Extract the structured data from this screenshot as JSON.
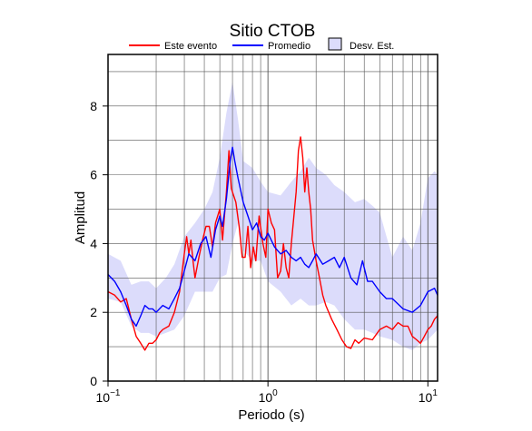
{
  "chart_data": {
    "type": "line",
    "title": "Sitio CTOB",
    "xlabel": "Periodo (s)",
    "ylabel": "Amplitud",
    "x_scale": "log",
    "xlim": [
      0.1,
      11.5
    ],
    "ylim": [
      0,
      9.5
    ],
    "grid": true,
    "legend_position": "top-center",
    "x_ticks": [
      {
        "value": 0.1,
        "base": "10",
        "exp": "−1"
      },
      {
        "value": 1,
        "base": "10",
        "exp": "0"
      },
      {
        "value": 10,
        "base": "10",
        "exp": "1"
      }
    ],
    "y_ticks": [
      0,
      2,
      4,
      6,
      8
    ],
    "legend": [
      {
        "label": "Este evento",
        "kind": "line",
        "color": "#ff0000"
      },
      {
        "label": "Promedio",
        "kind": "line",
        "color": "#0000ff"
      },
      {
        "label": "Desv. Est.",
        "kind": "box",
        "color": "#dcdcfb"
      }
    ],
    "colors": {
      "event": "#ff0000",
      "mean": "#0000ff",
      "band": "#dcdcfb"
    },
    "series": [
      {
        "name": "Este evento",
        "x": [
          0.1,
          0.11,
          0.12,
          0.13,
          0.14,
          0.15,
          0.16,
          0.17,
          0.18,
          0.19,
          0.2,
          0.21,
          0.22,
          0.24,
          0.26,
          0.28,
          0.3,
          0.31,
          0.32,
          0.33,
          0.34,
          0.35,
          0.37,
          0.39,
          0.41,
          0.43,
          0.45,
          0.47,
          0.5,
          0.52,
          0.55,
          0.57,
          0.59,
          0.61,
          0.63,
          0.66,
          0.69,
          0.72,
          0.75,
          0.78,
          0.81,
          0.84,
          0.88,
          0.93,
          0.97,
          1.0,
          1.05,
          1.1,
          1.15,
          1.2,
          1.25,
          1.3,
          1.35,
          1.4,
          1.5,
          1.55,
          1.6,
          1.65,
          1.7,
          1.75,
          1.8,
          1.85,
          1.9,
          2.0,
          2.1,
          2.2,
          2.3,
          2.5,
          2.7,
          2.9,
          3.1,
          3.3,
          3.5,
          3.7,
          4.0,
          4.5,
          5.0,
          5.5,
          6.0,
          6.5,
          7.0,
          7.5,
          8.0,
          8.5,
          9.0,
          9.5,
          10.0,
          10.5,
          11.0,
          11.5
        ],
        "values": [
          2.6,
          2.5,
          2.3,
          2.4,
          1.8,
          1.3,
          1.1,
          0.9,
          1.1,
          1.1,
          1.2,
          1.4,
          1.5,
          1.6,
          2.0,
          2.6,
          3.7,
          4.2,
          3.7,
          4.1,
          3.5,
          3.0,
          3.6,
          4.1,
          4.5,
          4.5,
          3.9,
          4.6,
          5.0,
          4.1,
          5.5,
          6.7,
          5.6,
          5.4,
          5.2,
          4.5,
          3.6,
          3.6,
          4.5,
          3.3,
          3.9,
          3.5,
          4.8,
          4.0,
          3.6,
          5.0,
          4.6,
          4.4,
          3.0,
          3.2,
          4.0,
          3.3,
          3.0,
          4.0,
          5.5,
          6.7,
          7.1,
          6.5,
          5.5,
          6.2,
          5.5,
          5.0,
          4.1,
          3.5,
          3.0,
          2.5,
          2.2,
          1.8,
          1.5,
          1.2,
          1.0,
          0.95,
          1.2,
          1.1,
          1.25,
          1.2,
          1.5,
          1.6,
          1.5,
          1.7,
          1.6,
          1.6,
          1.3,
          1.2,
          1.1,
          1.3,
          1.5,
          1.6,
          1.8,
          1.9
        ]
      },
      {
        "name": "Promedio",
        "x": [
          0.1,
          0.11,
          0.12,
          0.13,
          0.14,
          0.15,
          0.16,
          0.17,
          0.18,
          0.19,
          0.2,
          0.22,
          0.24,
          0.26,
          0.28,
          0.3,
          0.32,
          0.35,
          0.38,
          0.41,
          0.44,
          0.47,
          0.5,
          0.52,
          0.55,
          0.58,
          0.6,
          0.62,
          0.65,
          0.7,
          0.75,
          0.8,
          0.85,
          0.9,
          0.95,
          1.0,
          1.1,
          1.2,
          1.3,
          1.4,
          1.5,
          1.6,
          1.7,
          1.8,
          1.9,
          2.0,
          2.2,
          2.4,
          2.6,
          2.8,
          3.0,
          3.3,
          3.6,
          3.9,
          4.2,
          4.5,
          5.0,
          5.5,
          6.0,
          7.0,
          8.0,
          9.0,
          10.0,
          11.0,
          11.5
        ],
        "values": [
          3.1,
          2.9,
          2.6,
          2.2,
          1.8,
          1.6,
          1.9,
          2.2,
          2.1,
          2.1,
          2.0,
          2.2,
          2.1,
          2.4,
          2.7,
          3.2,
          3.7,
          3.5,
          4.0,
          4.2,
          3.6,
          4.4,
          4.8,
          4.5,
          5.3,
          6.4,
          6.8,
          6.4,
          5.9,
          5.2,
          4.8,
          4.4,
          4.6,
          4.2,
          4.1,
          4.3,
          3.9,
          3.7,
          3.8,
          3.6,
          3.5,
          3.6,
          3.4,
          3.3,
          3.5,
          3.7,
          3.4,
          3.5,
          3.6,
          3.3,
          3.6,
          3.0,
          2.8,
          3.5,
          2.9,
          2.9,
          2.6,
          2.4,
          2.4,
          2.1,
          2.0,
          2.2,
          2.6,
          2.7,
          2.5
        ]
      }
    ],
    "band": {
      "name": "Desv. Est.",
      "x": [
        0.1,
        0.12,
        0.14,
        0.16,
        0.18,
        0.2,
        0.23,
        0.26,
        0.3,
        0.35,
        0.4,
        0.45,
        0.5,
        0.55,
        0.6,
        0.65,
        0.7,
        0.8,
        0.9,
        1.0,
        1.2,
        1.4,
        1.6,
        1.8,
        2.0,
        2.3,
        2.6,
        3.0,
        3.5,
        4.0,
        4.5,
        5.0,
        6.0,
        7.0,
        8.0,
        9.0,
        10.0,
        11.0,
        11.5
      ],
      "upper": [
        3.7,
        3.5,
        2.8,
        2.9,
        2.9,
        2.7,
        3.0,
        3.4,
        4.2,
        4.6,
        5.0,
        5.5,
        6.5,
        7.8,
        8.7,
        7.6,
        6.4,
        6.2,
        5.8,
        5.5,
        5.4,
        5.8,
        6.1,
        6.5,
        6.2,
        6.0,
        5.7,
        5.5,
        5.2,
        5.3,
        5.1,
        4.9,
        3.6,
        4.2,
        3.8,
        4.6,
        5.9,
        6.1,
        6.0
      ],
      "lower": [
        2.4,
        2.3,
        1.6,
        1.4,
        1.4,
        1.3,
        1.4,
        1.5,
        1.9,
        2.6,
        2.6,
        2.6,
        3.0,
        3.1,
        4.0,
        4.6,
        3.8,
        3.5,
        3.5,
        2.9,
        2.6,
        2.2,
        2.4,
        2.2,
        2.2,
        2.3,
        2.2,
        1.8,
        1.5,
        1.5,
        1.4,
        1.3,
        1.2,
        1.0,
        0.9,
        1.1,
        1.2,
        1.4,
        1.5
      ]
    }
  }
}
